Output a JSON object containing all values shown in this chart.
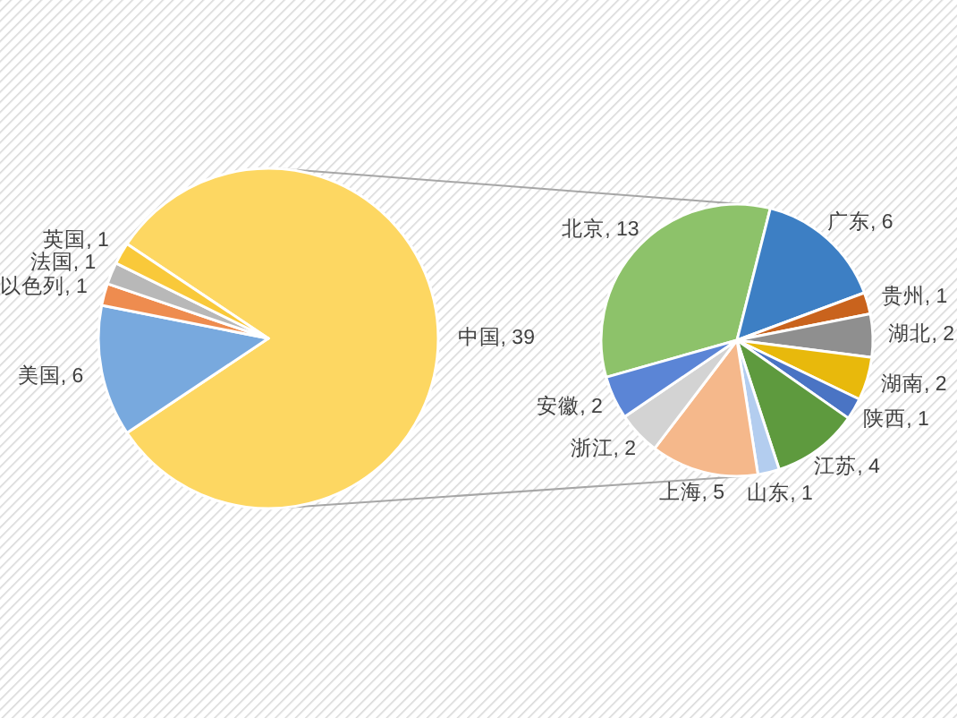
{
  "chart_data": [
    {
      "type": "pie",
      "categories": [
        "中国",
        "美国",
        "以色列",
        "法国",
        "英国"
      ],
      "values": [
        39,
        6,
        1,
        1,
        1
      ],
      "value_labels": [
        ", 39",
        ", 6",
        ", 1",
        ", 1",
        ", 1"
      ],
      "colors": [
        "#fdd762",
        "#78a9de",
        "#ee8c4f",
        "#b8b8b8",
        "#f9c93a"
      ]
    },
    {
      "type": "pie",
      "categories": [
        "北京",
        "广东",
        "贵州",
        "湖北",
        "湖南",
        "陕西",
        "江苏",
        "山东",
        "上海",
        "浙江",
        "安徽"
      ],
      "values": [
        13,
        6,
        1,
        2,
        2,
        1,
        4,
        1,
        5,
        2,
        2
      ],
      "value_labels": [
        ", 13",
        ", 6",
        ", 1",
        ", 2",
        ", 2",
        ", 1",
        ", 4",
        ", 1",
        ", 5",
        ", 2",
        ", 2"
      ],
      "colors": [
        "#8dc26a",
        "#3d7fc4",
        "#c9631d",
        "#8f8f8f",
        "#e8b90c",
        "#4a74c4",
        "#5e9a3e",
        "#b3cdef",
        "#f5b88b",
        "#d3d3d3",
        "#5b85d6"
      ]
    }
  ]
}
